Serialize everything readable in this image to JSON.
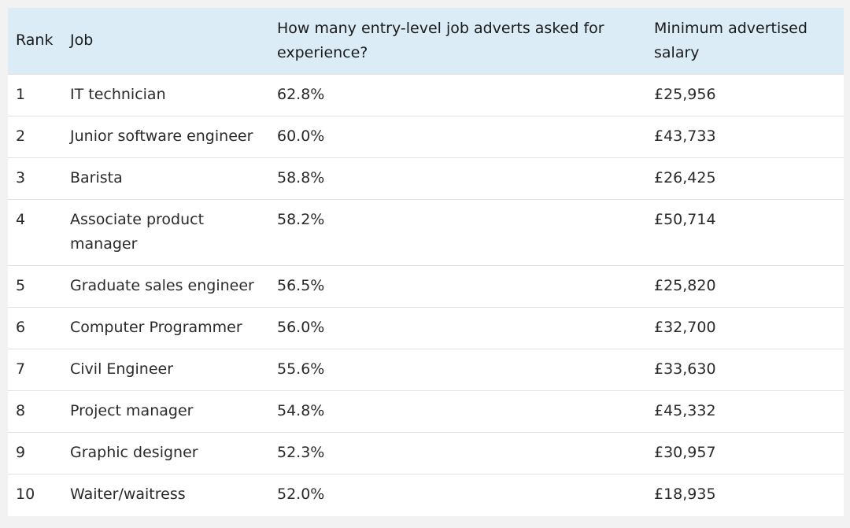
{
  "table": {
    "headers": {
      "rank": "Rank",
      "job": "Job",
      "experience": "How many entry-level job adverts asked for experience?",
      "salary": "Minimum advertised salary"
    },
    "rows": [
      {
        "rank": "1",
        "job": "IT technician",
        "experience": "62.8%",
        "salary": "£25,956"
      },
      {
        "rank": "2",
        "job": "Junior software engineer",
        "experience": "60.0%",
        "salary": "£43,733"
      },
      {
        "rank": "3",
        "job": "Barista",
        "experience": "58.8%",
        "salary": "£26,425"
      },
      {
        "rank": "4",
        "job": "Associate product manager",
        "experience": "58.2%",
        "salary": "£50,714"
      },
      {
        "rank": "5",
        "job": "Graduate sales engineer",
        "experience": "56.5%",
        "salary": "£25,820"
      },
      {
        "rank": "6",
        "job": "Computer Programmer",
        "experience": "56.0%",
        "salary": "£32,700"
      },
      {
        "rank": "7",
        "job": "Civil Engineer",
        "experience": "55.6%",
        "salary": "£33,630"
      },
      {
        "rank": "8",
        "job": "Project manager",
        "experience": "54.8%",
        "salary": "£45,332"
      },
      {
        "rank": "9",
        "job": "Graphic designer",
        "experience": "52.3%",
        "salary": "£30,957"
      },
      {
        "rank": "10",
        "job": "Waiter/waitress",
        "experience": "52.0%",
        "salary": "£18,935"
      }
    ]
  },
  "colors": {
    "header_background": "#dbecf7",
    "page_background": "#f2f2f2",
    "row_divider": "#e3e3e3"
  }
}
